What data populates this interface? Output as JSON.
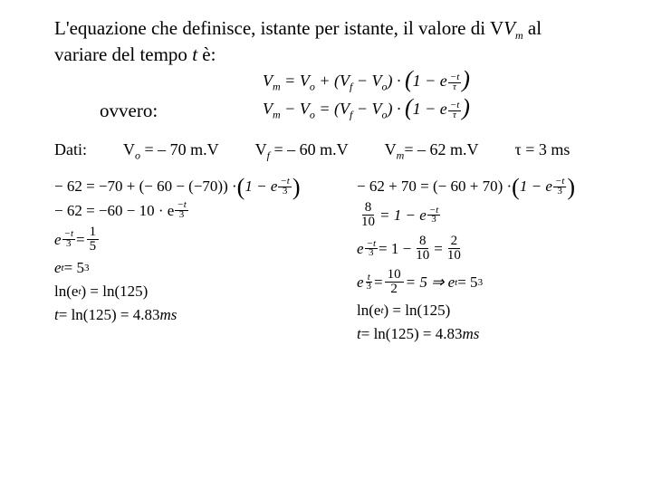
{
  "text_color": "#000000",
  "background": "#ffffff",
  "font_family": "Times New Roman",
  "intro": {
    "line": "L'equazione che definisce, istante per istante, il valore di V",
    "sub": "m",
    "tail": " al variare del tempo ",
    "tvar": "t",
    "end": " è:",
    "fontsize": 21
  },
  "ovvero": "ovvero:",
  "eq1": {
    "lhs": "V",
    "lhs_sub": "m",
    "t1a": " = V",
    "t1a_sub": "o",
    "t1b": " + (V",
    "t1b_sub": "f",
    "t1c": " − V",
    "t1c_sub": "o",
    "t1d": ") · ",
    "paren_open": "(",
    "one_minus": "1 − e",
    "exp_num": "−t",
    "exp_den": "τ",
    "paren_close": ")"
  },
  "eq2": {
    "a": "V",
    "a_sub": "m",
    "b": " − V",
    "b_sub": "o",
    "c": " = (V",
    "c_sub": "f",
    "d": " − V",
    "d_sub": "o",
    "e": ") · ",
    "paren_open": "(",
    "one_minus": "1 − e",
    "exp_num": "−t",
    "exp_den": "τ",
    "paren_close": ")"
  },
  "dati": {
    "label": "Dati:",
    "v0": {
      "pre": "V",
      "sub": "o",
      "post": " = – 70 m.V"
    },
    "vf": {
      "pre": "V",
      "sub": "f",
      "post": " = – 60 m.V"
    },
    "vm": {
      "pre": "V",
      "sub": "m",
      "post": "= – 62 m.V"
    },
    "tau": {
      "pre": "τ",
      "post": " = 3 ms"
    }
  },
  "colA": {
    "l1": {
      "a": "− 62 = −70 + (− 60 − (−70)) · ",
      "paren_open": "(",
      "one_minus": "1 − e",
      "exp_num": "−t",
      "exp_den": "3",
      "paren_close": ")"
    },
    "l2": {
      "a": "− 62 = −60 − 10 · e",
      "exp_num": "−t",
      "exp_den": "3"
    },
    "l3": {
      "a": "e",
      "exp_num": "−t",
      "exp_den": "3",
      "b": " = ",
      "frac_num": "1",
      "frac_den": "5"
    },
    "l4": {
      "a": "e",
      "sup": "t",
      "b": " = 5",
      "sup2": "3"
    },
    "l5": {
      "a": "ln(e",
      "sup": "t",
      "b": ") = ln(125)"
    },
    "l6": {
      "a": "t",
      "b": " = ln(125) = 4.83",
      "unit": "ms"
    }
  },
  "colB": {
    "l1": {
      "a": "− 62 + 70 = (− 60 + 70) · ",
      "paren_open": "(",
      "one_minus": "1 − e",
      "exp_num": "−t",
      "exp_den": "3",
      "paren_close": ")"
    },
    "l2": {
      "frac_num": "8",
      "frac_den": "10",
      "a": " = 1 − e",
      "exp_num": "−t",
      "exp_den": "3"
    },
    "l3": {
      "a": "e",
      "exp_num": "−t",
      "exp_den": "3",
      "b": " = 1 − ",
      "f1n": "8",
      "f1d": "10",
      "c": " = ",
      "f2n": "2",
      "f2d": "10"
    },
    "l4": {
      "a": "e",
      "exp_num": "t",
      "exp_den": "3",
      "b": " = ",
      "f1n": "10",
      "f1d": "2",
      "c": " = 5 ⇒ e",
      "sup": "t",
      "d": " = 5",
      "sup2": "3"
    },
    "l5": {
      "a": "ln(e",
      "sup": "t",
      "b": ") = ln(125)"
    },
    "l6": {
      "a": "t",
      "b": " = ln(125) = 4.83",
      "unit": "ms"
    }
  }
}
